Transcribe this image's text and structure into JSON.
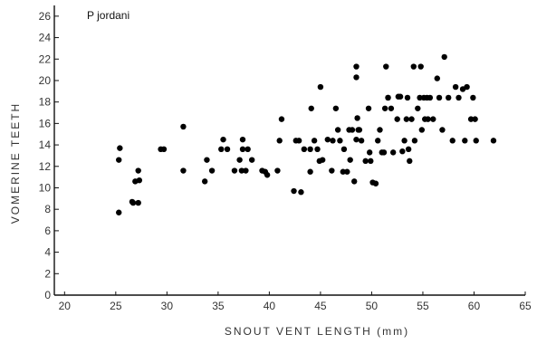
{
  "chart_data": {
    "type": "scatter",
    "title": "",
    "annotations": [
      "P  jordani"
    ],
    "xlabel": "SNOUT VENT LENGTH   (mm)",
    "ylabel": "VOMERINE  TEETH",
    "xlim": [
      19,
      65
    ],
    "ylim": [
      0,
      27
    ],
    "x_ticks": [
      20,
      25,
      30,
      35,
      40,
      45,
      50,
      55,
      60,
      65
    ],
    "y_ticks": [
      0,
      2,
      4,
      6,
      8,
      10,
      12,
      14,
      16,
      18,
      20,
      22,
      24,
      26
    ],
    "grid": false,
    "marker_color": "#000000",
    "series": [
      {
        "x": [
          25.3,
          25.3,
          25.4,
          26.6,
          26.9,
          27.2,
          27.3,
          27.2,
          26.7,
          29.4,
          29.7,
          31.6,
          31.6,
          33.7,
          33.9,
          34.4,
          35.3,
          35.5,
          35.9,
          36.6,
          37.1,
          37.4,
          37.4,
          37.3,
          37.7,
          37.9,
          38.3,
          39.3,
          39.6,
          39.8,
          40.8,
          41.0,
          41.2,
          42.4,
          42.6,
          42.9,
          43.1,
          43.4,
          44.0,
          44.0,
          44.1,
          44.4,
          44.7,
          44.9,
          45.0,
          45.2,
          45.7,
          46.1,
          46.2,
          46.5,
          46.7,
          46.9,
          47.2,
          47.3,
          47.6,
          47.8,
          47.9,
          48.1,
          48.3,
          48.5,
          48.5,
          48.5,
          48.6,
          48.7,
          48.8,
          49.0,
          49.4,
          49.7,
          49.8,
          49.9,
          50.1,
          50.4,
          50.6,
          50.8,
          51.0,
          51.2,
          51.3,
          51.4,
          51.6,
          51.6,
          51.9,
          52.1,
          52.5,
          52.6,
          52.8,
          53.0,
          53.2,
          53.4,
          53.5,
          53.6,
          53.7,
          53.9,
          54.1,
          54.2,
          54.5,
          54.7,
          54.8,
          54.9,
          55.1,
          55.2,
          55.4,
          55.5,
          55.7,
          56.0,
          56.4,
          56.6,
          56.9,
          57.1,
          57.5,
          57.9,
          58.2,
          58.5,
          58.9,
          59.1,
          59.3,
          59.7,
          59.9,
          60.1,
          60.2,
          61.9
        ],
        "y": [
          7.7,
          12.6,
          13.7,
          8.7,
          10.6,
          8.6,
          10.7,
          11.6,
          8.6,
          13.6,
          13.6,
          11.6,
          15.7,
          10.6,
          12.6,
          11.6,
          13.6,
          14.5,
          13.6,
          11.6,
          12.6,
          14.5,
          13.6,
          11.6,
          11.6,
          13.6,
          12.6,
          11.6,
          11.5,
          11.2,
          11.6,
          14.4,
          16.4,
          9.7,
          14.4,
          14.4,
          9.6,
          13.6,
          11.5,
          13.6,
          17.4,
          14.4,
          13.6,
          12.5,
          19.4,
          12.6,
          14.5,
          11.6,
          14.4,
          17.4,
          15.4,
          14.4,
          11.5,
          13.6,
          11.5,
          15.4,
          12.6,
          15.4,
          10.6,
          14.5,
          20.3,
          21.3,
          16.5,
          15.4,
          15.4,
          14.4,
          12.5,
          17.4,
          13.3,
          12.5,
          10.5,
          10.4,
          14.4,
          15.4,
          13.3,
          13.3,
          17.4,
          21.3,
          18.4,
          18.4,
          17.4,
          13.3,
          16.4,
          18.5,
          18.5,
          13.4,
          14.4,
          16.4,
          18.4,
          13.6,
          12.5,
          16.4,
          21.3,
          14.4,
          17.4,
          18.4,
          21.3,
          15.4,
          18.4,
          16.4,
          18.4,
          16.4,
          18.4,
          16.4,
          20.2,
          18.4,
          15.4,
          22.2,
          18.4,
          14.4,
          19.4,
          18.4,
          19.2,
          14.4,
          19.4,
          16.4,
          18.4,
          16.4,
          14.4,
          14.4
        ]
      }
    ]
  }
}
